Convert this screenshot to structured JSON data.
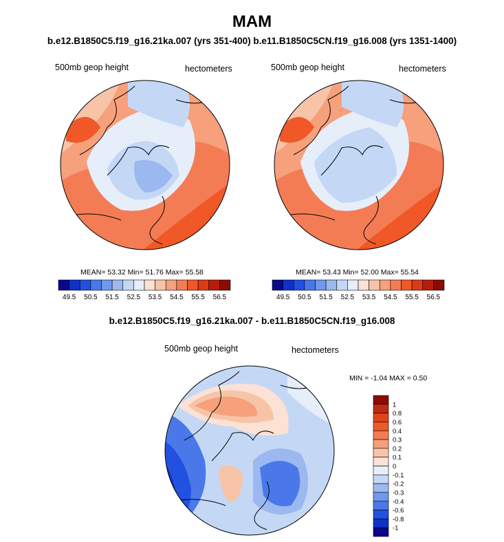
{
  "title": "MAM",
  "subtitle_top": "b.e12.B1850C5.f19_g16.21ka.007 (yrs 351-400) b.e11.B1850C5CN.f19_g16.008 (yrs 1351-1400)",
  "subtitle_diff": "b.e12.B1850C5.f19_g16.21ka.007 - b.e11.B1850C5CN.f19_g16.008",
  "panels": [
    {
      "variable": "500mb geop height",
      "units": "hectometers",
      "stats": "MEAN=  53.32  Min=  51.76  Max=  55.58"
    },
    {
      "variable": "500mb geop height",
      "units": "hectometers",
      "stats": "MEAN=  53.43  Min=  52.00  Max=  55.54"
    },
    {
      "variable": "500mb geop height",
      "units": "hectometers",
      "stats": "MIN =  -1.04 MAX =   0.50"
    }
  ],
  "colorbar_main": {
    "tick_labels": [
      "49.5",
      "50.5",
      "51.5",
      "52.5",
      "53.5",
      "54.5",
      "55.5",
      "56.5"
    ],
    "colors": [
      "#08088c",
      "#1030c8",
      "#2250e0",
      "#4a78e8",
      "#7098ec",
      "#9cb8f0",
      "#c4d8f6",
      "#e6eefa",
      "#fbe2d4",
      "#f8c4a8",
      "#f6a07c",
      "#f47c54",
      "#f05828",
      "#dd3a16",
      "#b81c0c",
      "#8c0a04"
    ]
  },
  "colorbar_diff": {
    "tick_labels": [
      "1",
      "0.8",
      "0.6",
      "0.4",
      "0.3",
      "0.2",
      "0.1",
      "0",
      "-0.1",
      "-0.2",
      "-0.3",
      "-0.4",
      "-0.6",
      "-0.8",
      "-1"
    ],
    "colors": [
      "#8c0a04",
      "#c02a10",
      "#e04418",
      "#f05828",
      "#f47c54",
      "#f6a07c",
      "#f8c4a8",
      "#fbe2d4",
      "#e6eefa",
      "#c4d8f6",
      "#9cb8f0",
      "#7098ec",
      "#4a78e8",
      "#2250e0",
      "#1030c8",
      "#08088c"
    ]
  }
}
